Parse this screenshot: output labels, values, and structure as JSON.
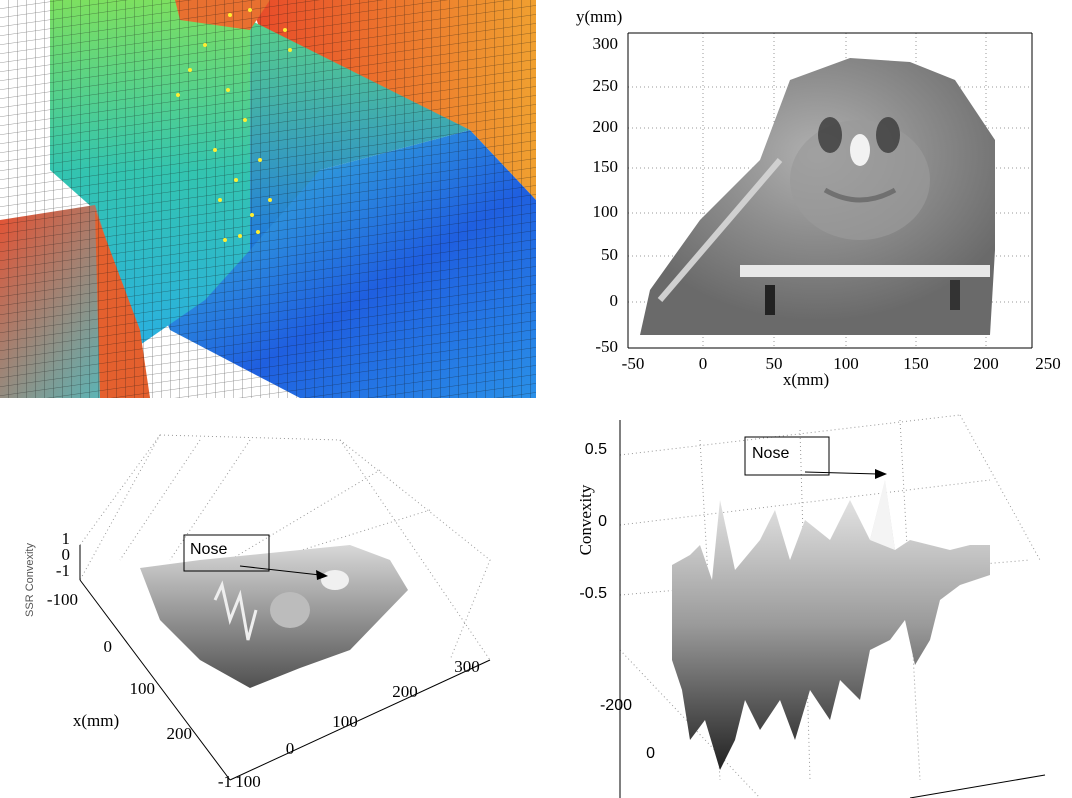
{
  "top_right": {
    "y_label": "y(mm)",
    "x_label": "x(mm)",
    "yticks": [
      "300",
      "250",
      "200",
      "150",
      "100",
      "50",
      "0",
      "-50"
    ],
    "xticks": [
      "-50",
      "0",
      "50",
      "100",
      "150",
      "200",
      "250"
    ]
  },
  "bottom_left": {
    "z_label": "SSR Convexity",
    "zticks": [
      "1",
      "0",
      "-1"
    ],
    "x_label": "x(mm)",
    "xticks": [
      "-100",
      "0",
      "100",
      "200",
      "-1"
    ],
    "yticks": [
      "100",
      "0",
      "100",
      "200",
      "300"
    ],
    "annotation": "Nose"
  },
  "bottom_right": {
    "z_label": "Convexity",
    "zticks": [
      "0.5",
      "0",
      "-0.5"
    ],
    "yticks": [
      "-200",
      "0"
    ],
    "annotation": "Nose"
  }
}
